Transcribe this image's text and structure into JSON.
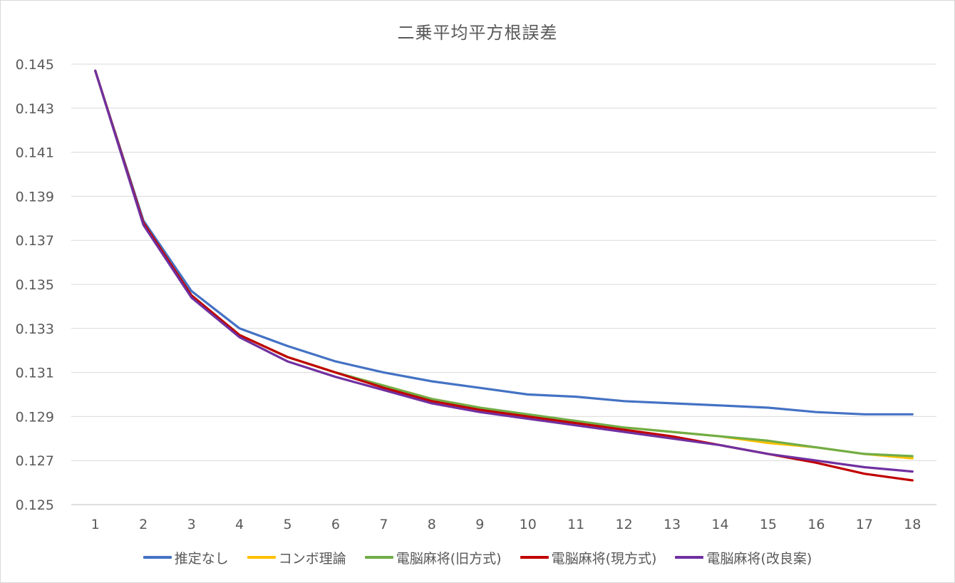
{
  "chart_data": {
    "type": "line",
    "title": "二乗平均平方根誤差",
    "xlabel": "",
    "ylabel": "",
    "categories": [
      "1",
      "2",
      "3",
      "4",
      "5",
      "6",
      "7",
      "8",
      "9",
      "10",
      "11",
      "12",
      "13",
      "14",
      "15",
      "16",
      "17",
      "18"
    ],
    "ylim": [
      0.125,
      0.145
    ],
    "yticks": [
      "0.125",
      "0.127",
      "0.129",
      "0.131",
      "0.133",
      "0.135",
      "0.137",
      "0.139",
      "0.141",
      "0.143",
      "0.145"
    ],
    "grid": true,
    "legend_position": "bottom",
    "series": [
      {
        "name": "推定なし",
        "color": "#4472C4",
        "values": [
          0.1447,
          0.1379,
          0.1347,
          0.133,
          0.1322,
          0.1315,
          0.131,
          0.1306,
          0.1303,
          0.13,
          0.1299,
          0.1297,
          0.1296,
          0.1295,
          0.1294,
          0.1292,
          0.1291,
          0.1291
        ]
      },
      {
        "name": "コンボ理論",
        "color": "#FFC000",
        "values": [
          0.1447,
          0.1378,
          0.1345,
          0.1327,
          0.1317,
          0.131,
          0.1304,
          0.1298,
          0.1294,
          0.129,
          0.1287,
          0.1285,
          0.1283,
          0.1281,
          0.1278,
          0.1276,
          0.1273,
          0.1271
        ]
      },
      {
        "name": "電脳麻将(旧方式)",
        "color": "#70AD47",
        "values": [
          0.1447,
          0.1378,
          0.1345,
          0.1327,
          0.1317,
          0.131,
          0.1304,
          0.1298,
          0.1294,
          0.1291,
          0.1288,
          0.1285,
          0.1283,
          0.1281,
          0.1279,
          0.1276,
          0.1273,
          0.1272
        ]
      },
      {
        "name": "電脳麻将(現方式)",
        "color": "#C00000",
        "values": [
          0.1447,
          0.1378,
          0.1345,
          0.1327,
          0.1317,
          0.131,
          0.1303,
          0.1297,
          0.1293,
          0.129,
          0.1287,
          0.1284,
          0.1281,
          0.1277,
          0.1273,
          0.1269,
          0.1264,
          0.1261
        ]
      },
      {
        "name": "電脳麻将(改良案)",
        "color": "#7030A0",
        "values": [
          0.1447,
          0.1377,
          0.1344,
          0.1326,
          0.1315,
          0.1308,
          0.1302,
          0.1296,
          0.1292,
          0.1289,
          0.1286,
          0.1283,
          0.128,
          0.1277,
          0.1273,
          0.127,
          0.1267,
          0.1265
        ]
      }
    ]
  }
}
